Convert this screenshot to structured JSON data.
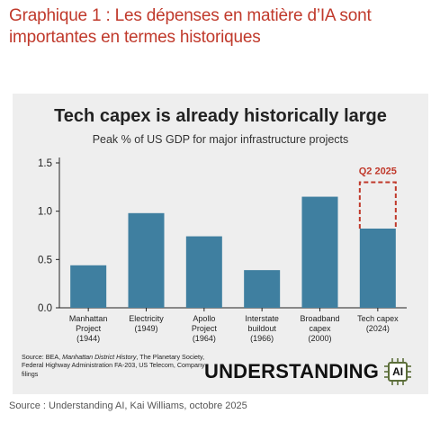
{
  "page": {
    "heading": "Graphique 1 : Les dépenses en matière d’IA sont importantes en termes historiques",
    "source": "Source : Understanding AI, Kai Williams, octobre 2025",
    "accent_color": "#c0392b"
  },
  "card": {
    "source_note_prefix": "Source: BEA, ",
    "source_note_italic": "Manhattan District History",
    "source_note_suffix": ", The Planetary Society, Federal Highway Administration FA-203, US Telecom, Company filings",
    "brand_text": "UNDERSTANDING",
    "brand_chip_text": "AI",
    "brand_icon": "chip-icon"
  },
  "chart_data": {
    "type": "bar",
    "title": "Tech capex is already historically large",
    "subtitle": "Peak % of US GDP for major infrastructure projects",
    "categories": [
      [
        "Manhattan",
        "Project",
        "(1944)"
      ],
      [
        "Electricity",
        "(1949)"
      ],
      [
        "Apollo",
        "Project",
        "(1964)"
      ],
      [
        "Interstate",
        "buildout",
        "(1966)"
      ],
      [
        "Broadband",
        "capex",
        "(2000)"
      ],
      [
        "Tech capex",
        "(2024)"
      ]
    ],
    "values": [
      0.44,
      0.98,
      0.74,
      0.39,
      1.15,
      0.82
    ],
    "projection": {
      "category_index": 5,
      "value": 1.3,
      "label": "Q2 2025"
    },
    "ylim": [
      0,
      1.5
    ],
    "yticks": [
      "0.0",
      "0.5",
      "1.0",
      "1.5"
    ],
    "ytick_values": [
      0,
      0.5,
      1.0,
      1.5
    ],
    "grid": false,
    "bar_color": "#3f7fa0",
    "projection_color": "#c0392b"
  }
}
